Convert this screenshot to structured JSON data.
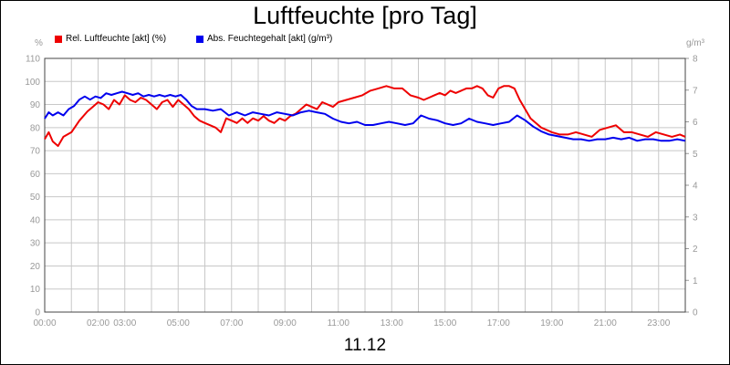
{
  "title": "Luftfeuchte [pro Tag]",
  "date_label": "11.12",
  "chart_data": {
    "type": "line",
    "title": "Luftfeuchte [pro Tag]",
    "xlabel": "11.12",
    "x_ticks": [
      "00:00",
      "02:00",
      "03:00",
      "05:00",
      "07:00",
      "09:00",
      "11:00",
      "13:00",
      "15:00",
      "17:00",
      "19:00",
      "21:00",
      "23:00"
    ],
    "x_tick_hours": [
      0,
      2,
      3,
      5,
      7,
      9,
      11,
      13,
      15,
      17,
      19,
      21,
      23
    ],
    "xlim": [
      0,
      24
    ],
    "grid": true,
    "legend_position": "top-left",
    "y_left": {
      "unit": "%",
      "lim": [
        0,
        110
      ],
      "ticks": [
        0,
        10,
        20,
        30,
        40,
        50,
        60,
        70,
        80,
        90,
        100,
        110
      ]
    },
    "y_right": {
      "unit": "g/m³",
      "lim": [
        0,
        8
      ],
      "ticks": [
        0,
        1,
        2,
        3,
        4,
        5,
        6,
        7,
        8
      ]
    },
    "series": [
      {
        "name": "Rel. Luftfeuchte [akt] (%)",
        "axis": "left",
        "color": "#ee0000",
        "x": [
          0,
          0.15,
          0.3,
          0.5,
          0.7,
          1.0,
          1.3,
          1.6,
          1.8,
          2.0,
          2.2,
          2.4,
          2.6,
          2.8,
          3.0,
          3.2,
          3.4,
          3.6,
          3.8,
          4.0,
          4.2,
          4.4,
          4.6,
          4.8,
          5.0,
          5.2,
          5.4,
          5.6,
          5.8,
          6.0,
          6.2,
          6.4,
          6.6,
          6.8,
          7.0,
          7.2,
          7.4,
          7.6,
          7.8,
          8.0,
          8.2,
          8.4,
          8.6,
          8.8,
          9.0,
          9.2,
          9.4,
          9.6,
          9.8,
          10.0,
          10.2,
          10.4,
          10.6,
          10.8,
          11.0,
          11.3,
          11.6,
          11.9,
          12.2,
          12.5,
          12.8,
          13.1,
          13.4,
          13.7,
          14.0,
          14.2,
          14.4,
          14.6,
          14.8,
          15.0,
          15.2,
          15.4,
          15.6,
          15.8,
          16.0,
          16.2,
          16.4,
          16.6,
          16.8,
          17.0,
          17.2,
          17.4,
          17.6,
          17.8,
          18.0,
          18.2,
          18.4,
          18.6,
          18.8,
          19.0,
          19.3,
          19.6,
          19.9,
          20.2,
          20.5,
          20.8,
          21.1,
          21.4,
          21.7,
          22.0,
          22.3,
          22.6,
          22.9,
          23.2,
          23.5,
          23.8,
          24.0
        ],
        "values": [
          75,
          78,
          74,
          72,
          76,
          78,
          83,
          87,
          89,
          91,
          90,
          88,
          92,
          90,
          94,
          92,
          91,
          93,
          92,
          90,
          88,
          91,
          92,
          89,
          92,
          90,
          88,
          85,
          83,
          82,
          81,
          80,
          78,
          84,
          83,
          82,
          84,
          82,
          84,
          83,
          85,
          83,
          82,
          84,
          83,
          85,
          86,
          88,
          90,
          89,
          88,
          91,
          90,
          89,
          91,
          92,
          93,
          94,
          96,
          97,
          98,
          97,
          97,
          94,
          93,
          92,
          93,
          94,
          95,
          94,
          96,
          95,
          96,
          97,
          97,
          98,
          97,
          94,
          93,
          97,
          98,
          98,
          97,
          92,
          88,
          84,
          82,
          80,
          79,
          78,
          77,
          77,
          78,
          77,
          76,
          79,
          80,
          81,
          78,
          78,
          77,
          76,
          78,
          77,
          76,
          77,
          76
        ]
      },
      {
        "name": "Abs. Feuchtegehalt [akt] (g/m³)",
        "axis": "right",
        "color": "#0000ee",
        "x": [
          0,
          0.15,
          0.3,
          0.5,
          0.7,
          0.9,
          1.1,
          1.3,
          1.5,
          1.7,
          1.9,
          2.1,
          2.3,
          2.5,
          2.7,
          2.9,
          3.1,
          3.3,
          3.5,
          3.7,
          3.9,
          4.1,
          4.3,
          4.5,
          4.7,
          4.9,
          5.1,
          5.3,
          5.5,
          5.7,
          6.0,
          6.3,
          6.6,
          6.9,
          7.2,
          7.5,
          7.8,
          8.1,
          8.4,
          8.7,
          9.0,
          9.3,
          9.6,
          9.9,
          10.2,
          10.5,
          10.8,
          11.1,
          11.4,
          11.7,
          12.0,
          12.3,
          12.6,
          12.9,
          13.2,
          13.5,
          13.8,
          14.1,
          14.4,
          14.7,
          15.0,
          15.3,
          15.6,
          15.9,
          16.2,
          16.5,
          16.8,
          17.1,
          17.4,
          17.7,
          18.0,
          18.3,
          18.6,
          18.9,
          19.2,
          19.5,
          19.8,
          20.1,
          20.4,
          20.7,
          21.0,
          21.3,
          21.6,
          21.9,
          22.2,
          22.5,
          22.8,
          23.1,
          23.4,
          23.7,
          24.0
        ],
        "values": [
          6.1,
          6.3,
          6.2,
          6.3,
          6.2,
          6.4,
          6.5,
          6.7,
          6.8,
          6.7,
          6.8,
          6.75,
          6.9,
          6.85,
          6.9,
          6.95,
          6.9,
          6.85,
          6.9,
          6.8,
          6.85,
          6.8,
          6.85,
          6.8,
          6.85,
          6.8,
          6.85,
          6.7,
          6.5,
          6.4,
          6.4,
          6.35,
          6.4,
          6.2,
          6.3,
          6.2,
          6.3,
          6.25,
          6.2,
          6.3,
          6.25,
          6.2,
          6.3,
          6.35,
          6.3,
          6.25,
          6.1,
          6.0,
          5.95,
          6.0,
          5.9,
          5.9,
          5.95,
          6.0,
          5.95,
          5.9,
          5.95,
          6.2,
          6.1,
          6.05,
          5.95,
          5.9,
          5.95,
          6.1,
          6.0,
          5.95,
          5.9,
          5.95,
          6.0,
          6.2,
          6.05,
          5.85,
          5.7,
          5.6,
          5.55,
          5.5,
          5.45,
          5.45,
          5.4,
          5.45,
          5.45,
          5.5,
          5.45,
          5.5,
          5.4,
          5.45,
          5.45,
          5.4,
          5.4,
          5.45,
          5.4
        ]
      }
    ]
  }
}
